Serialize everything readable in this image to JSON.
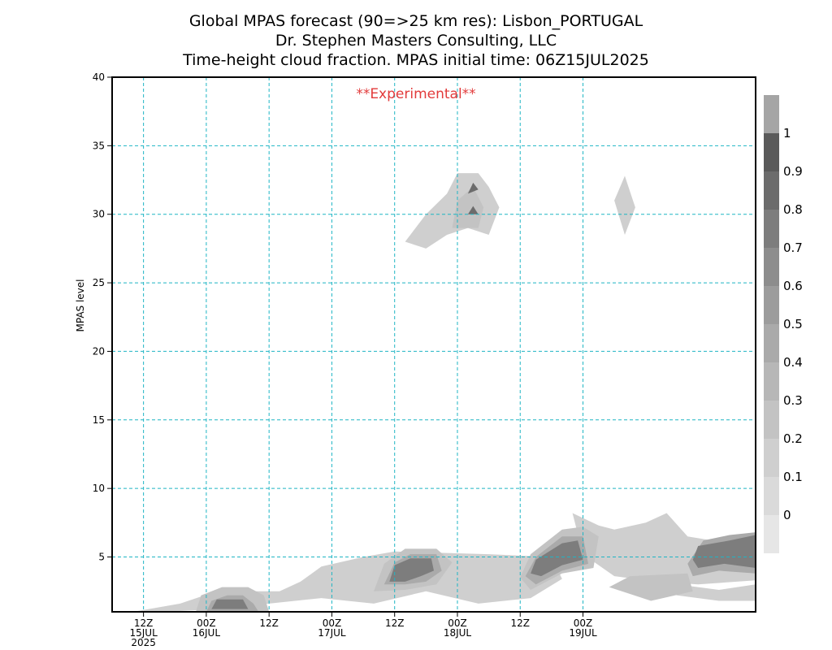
{
  "titles": {
    "line1": "Global MPAS forecast (90=>25 km res): Lisbon_PORTUGAL",
    "line2": "Dr. Stephen Masters Consulting, LLC",
    "line3": "Time-height cloud fraction.    MPAS initial time: 06Z15JUL2025"
  },
  "watermark": "**Experimental**",
  "chart_data": {
    "type": "heatmap",
    "ylabel": "MPAS level",
    "xlabel": "",
    "ylim": [
      1,
      40
    ],
    "y_ticks": [
      "5",
      "10",
      "15",
      "20",
      "25",
      "30",
      "35",
      "40"
    ],
    "xlim_hours": [
      0,
      123
    ],
    "x_ticks": [
      {
        "line1": "12Z",
        "line2": "15JUL",
        "line3": "2025"
      },
      {
        "line1": "00Z",
        "line2": "16JUL",
        "line3": ""
      },
      {
        "line1": "12Z",
        "line2": "",
        "line3": ""
      },
      {
        "line1": "00Z",
        "line2": "17JUL",
        "line3": ""
      },
      {
        "line1": "12Z",
        "line2": "",
        "line3": ""
      },
      {
        "line1": "00Z",
        "line2": "18JUL",
        "line3": ""
      },
      {
        "line1": "12Z",
        "line2": "",
        "line3": ""
      },
      {
        "line1": "00Z",
        "line2": "19JUL",
        "line3": ""
      }
    ],
    "grid": true,
    "colorbar": {
      "labels": [
        "0",
        "0.1",
        "0.2",
        "0.3",
        "0.4",
        "0.5",
        "0.6",
        "0.7",
        "0.8",
        "0.9",
        "1"
      ],
      "colors": [
        "#e6e6e6",
        "#dadada",
        "#cfcfcf",
        "#c3c3c3",
        "#b7b7b7",
        "#aaaaaa",
        "#9c9c9c",
        "#8d8d8d",
        "#7d7d7d",
        "#6c6c6c",
        "#5a5a5a",
        "#a5a5a5"
      ]
    },
    "cloud_regions": [
      {
        "fraction": 0.1,
        "time_level": [
          [
            4,
            1
          ],
          [
            13,
            1.6
          ],
          [
            20,
            2.5
          ],
          [
            32,
            2.5
          ],
          [
            36,
            3.2
          ],
          [
            40,
            4.3
          ],
          [
            48,
            5
          ],
          [
            54,
            5.4
          ],
          [
            72,
            5.2
          ],
          [
            84,
            5
          ],
          [
            86,
            3.4
          ],
          [
            80,
            2
          ],
          [
            70,
            1.6
          ],
          [
            60,
            2.5
          ],
          [
            50,
            1.6
          ],
          [
            40,
            2
          ],
          [
            30,
            1.6
          ],
          [
            20,
            1.2
          ],
          [
            10,
            1
          ]
        ]
      },
      {
        "fraction": 0.1,
        "time_level": [
          [
            88,
            8.2
          ],
          [
            93,
            7.3
          ],
          [
            96,
            7
          ],
          [
            102,
            7.5
          ],
          [
            106,
            8.2
          ],
          [
            110,
            6.5
          ],
          [
            118,
            6
          ],
          [
            123,
            6
          ],
          [
            123,
            3.3
          ],
          [
            112,
            3
          ],
          [
            104,
            3.2
          ],
          [
            96,
            3.6
          ],
          [
            90,
            5.2
          ]
        ]
      },
      {
        "fraction": 0.1,
        "time_level": [
          [
            102,
            3
          ],
          [
            108,
            2.2
          ],
          [
            116,
            1.8
          ],
          [
            123,
            1.8
          ],
          [
            123,
            3
          ],
          [
            116,
            2.6
          ],
          [
            108,
            3
          ]
        ]
      },
      {
        "fraction": 0.1,
        "time_level": [
          [
            56,
            28
          ],
          [
            60,
            30
          ],
          [
            64,
            31.5
          ],
          [
            66,
            33
          ],
          [
            70,
            33
          ],
          [
            72,
            32
          ],
          [
            74,
            30.5
          ],
          [
            72,
            28.5
          ],
          [
            68,
            29
          ],
          [
            64,
            28.5
          ],
          [
            60,
            27.5
          ]
        ]
      },
      {
        "fraction": 0.1,
        "time_level": [
          [
            96,
            31
          ],
          [
            98,
            32.8
          ],
          [
            100,
            30.5
          ],
          [
            98,
            28.5
          ]
        ]
      },
      {
        "fraction": 0.2,
        "time_level": [
          [
            16,
            1
          ],
          [
            17,
            2.2
          ],
          [
            21,
            2.8
          ],
          [
            26,
            2.8
          ],
          [
            29,
            2.2
          ],
          [
            30,
            1
          ]
        ]
      },
      {
        "fraction": 0.2,
        "time_level": [
          [
            50,
            2.5
          ],
          [
            52,
            4.5
          ],
          [
            56,
            5.6
          ],
          [
            62,
            5.6
          ],
          [
            65,
            4.6
          ],
          [
            62,
            3
          ],
          [
            56,
            2.6
          ]
        ]
      },
      {
        "fraction": 0.2,
        "time_level": [
          [
            78,
            3.5
          ],
          [
            80,
            5.2
          ],
          [
            86,
            7
          ],
          [
            90,
            7.2
          ],
          [
            93,
            6.5
          ],
          [
            92,
            4.2
          ],
          [
            86,
            3.8
          ],
          [
            80,
            2.6
          ]
        ]
      },
      {
        "fraction": 0.2,
        "time_level": [
          [
            95,
            2.8
          ],
          [
            99,
            3.6
          ],
          [
            110,
            3.8
          ],
          [
            111,
            2.5
          ],
          [
            103,
            1.8
          ]
        ]
      },
      {
        "fraction": 0.2,
        "time_level": [
          [
            65,
            29
          ],
          [
            66,
            31
          ],
          [
            69,
            32
          ],
          [
            71,
            30.5
          ],
          [
            70,
            29
          ]
        ]
      },
      {
        "fraction": 0.4,
        "time_level": [
          [
            18,
            1
          ],
          [
            19,
            1.8
          ],
          [
            22,
            2.2
          ],
          [
            25,
            2.2
          ],
          [
            27,
            1.6
          ],
          [
            28,
            1
          ]
        ]
      },
      {
        "fraction": 0.4,
        "time_level": [
          [
            52,
            3
          ],
          [
            54,
            4.6
          ],
          [
            57,
            5.2
          ],
          [
            62,
            5.2
          ],
          [
            63,
            4
          ],
          [
            60,
            3.2
          ],
          [
            56,
            3
          ]
        ]
      },
      {
        "fraction": 0.4,
        "time_level": [
          [
            79,
            3.6
          ],
          [
            81,
            5
          ],
          [
            86,
            6.5
          ],
          [
            90,
            6.5
          ],
          [
            91,
            4.5
          ],
          [
            86,
            4
          ],
          [
            81,
            3
          ]
        ]
      },
      {
        "fraction": 0.4,
        "time_level": [
          [
            110,
            4.5
          ],
          [
            113,
            6.2
          ],
          [
            118,
            6.6
          ],
          [
            123,
            6.8
          ],
          [
            123,
            3.8
          ],
          [
            116,
            4
          ],
          [
            111,
            3.6
          ]
        ]
      },
      {
        "fraction": 0.7,
        "time_level": [
          [
            19,
            1.2
          ],
          [
            20,
            1.9
          ],
          [
            25,
            1.9
          ],
          [
            26,
            1.2
          ]
        ]
      },
      {
        "fraction": 0.7,
        "time_level": [
          [
            53,
            3.2
          ],
          [
            54,
            4.4
          ],
          [
            57,
            4.9
          ],
          [
            61,
            4.9
          ],
          [
            61.5,
            4
          ],
          [
            59,
            3.6
          ],
          [
            56,
            3.2
          ]
        ]
      },
      {
        "fraction": 0.7,
        "time_level": [
          [
            80,
            3.8
          ],
          [
            81,
            4.8
          ],
          [
            86,
            6
          ],
          [
            89,
            6.2
          ],
          [
            90,
            4.8
          ],
          [
            86,
            4.4
          ],
          [
            82,
            3.6
          ]
        ]
      },
      {
        "fraction": 0.7,
        "time_level": [
          [
            111,
            4.8
          ],
          [
            112,
            5.8
          ],
          [
            118,
            6.2
          ],
          [
            123,
            6.6
          ],
          [
            123,
            4.2
          ],
          [
            117,
            4.5
          ],
          [
            112,
            4.2
          ]
        ]
      },
      {
        "fraction": 0.8,
        "time_level": [
          [
            68,
            31.5
          ],
          [
            69,
            32.3
          ],
          [
            70,
            31.8
          ]
        ]
      },
      {
        "fraction": 0.8,
        "time_level": [
          [
            68,
            30
          ],
          [
            69,
            30.6
          ],
          [
            70,
            30
          ]
        ]
      }
    ]
  }
}
